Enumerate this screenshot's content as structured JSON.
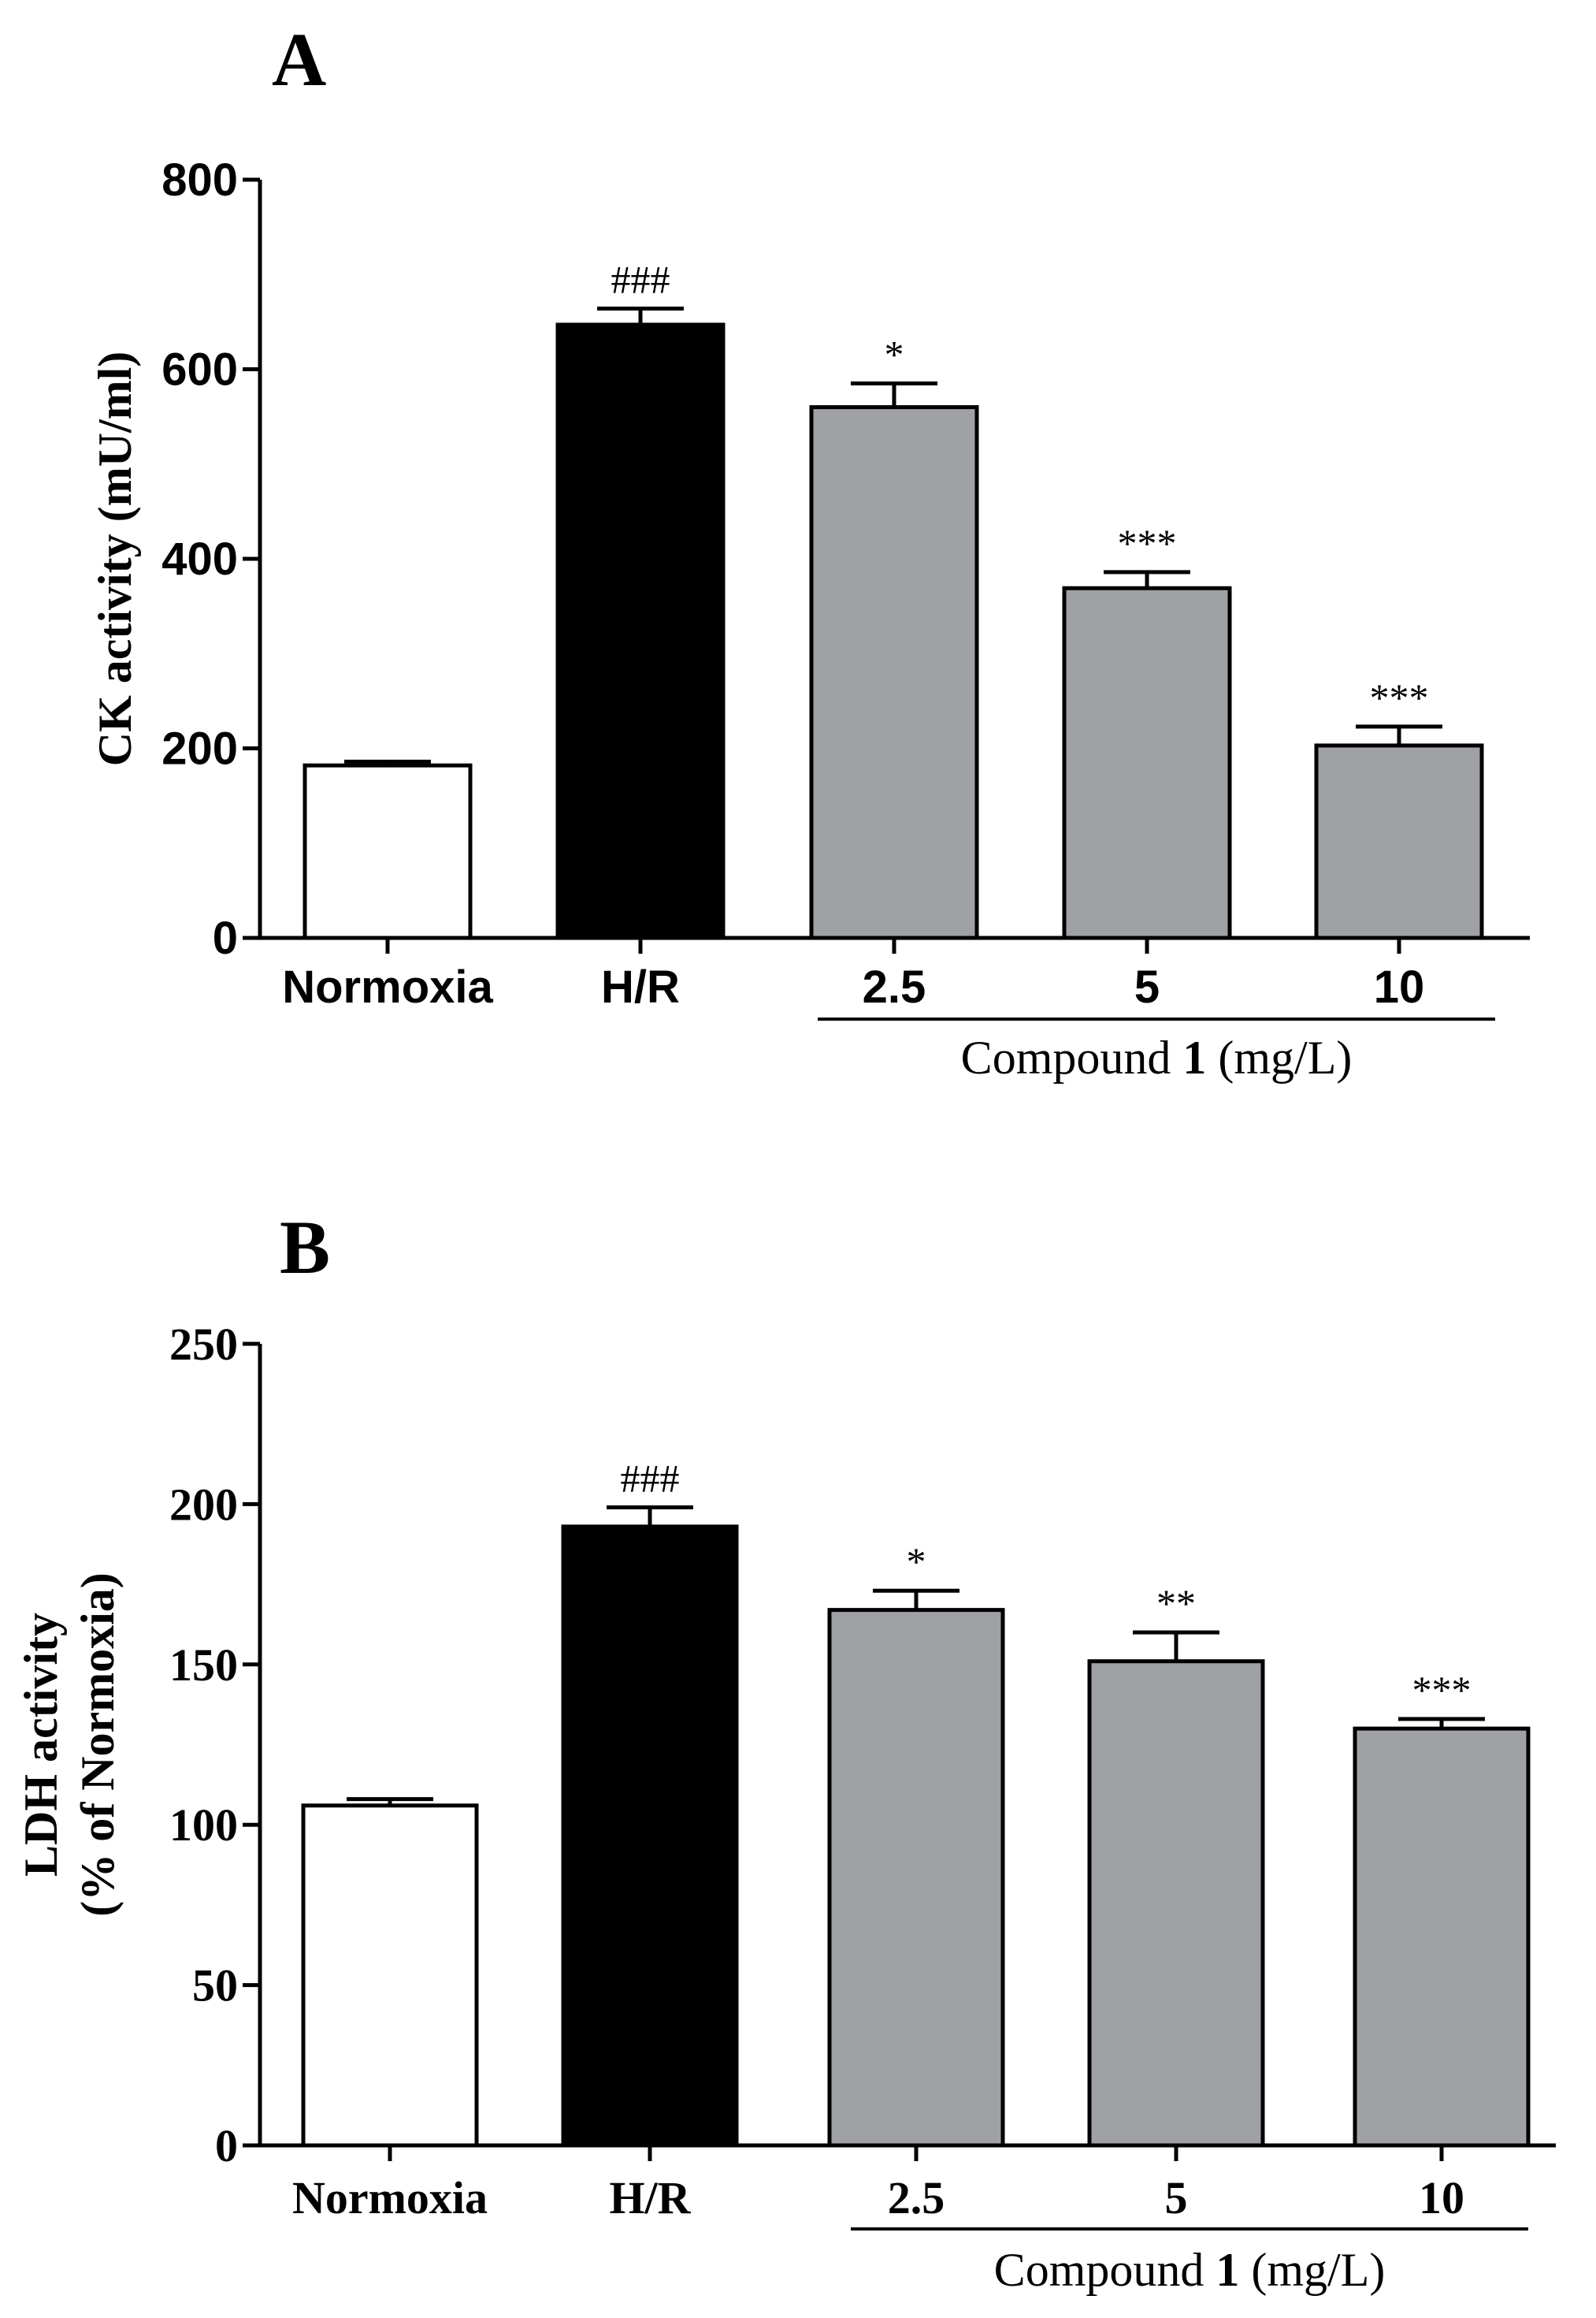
{
  "chart_data": [
    {
      "type": "bar",
      "panel": "A",
      "title": "",
      "ylabel": "CK activity (mU/ml)",
      "xlabel": "",
      "ylim": [
        0,
        800
      ],
      "yticks": [
        0,
        200,
        400,
        600,
        800
      ],
      "categories": [
        "Normoxia",
        "H/R",
        "2.5",
        "5",
        "10"
      ],
      "values": [
        182,
        647,
        560,
        369,
        203
      ],
      "errors": [
        4,
        17,
        25,
        17,
        20
      ],
      "significance": [
        "",
        "###",
        "*",
        "***",
        "***"
      ],
      "bar_colors": [
        "#ffffff",
        "#000000",
        "#a0a1a5",
        "#a0a1a5",
        "#a0a1a5"
      ],
      "group_label": {
        "prefix": "Compound ",
        "bold": "1",
        "suffix": " (mg/L)"
      },
      "group_span": [
        2,
        4
      ]
    },
    {
      "type": "bar",
      "panel": "B",
      "title": "",
      "ylabel": [
        "LDH activity",
        "(% of Normoxia)"
      ],
      "xlabel": "",
      "ylim": [
        0,
        250
      ],
      "yticks": [
        0,
        50,
        100,
        150,
        200,
        250
      ],
      "categories": [
        "Normoxia",
        "H/R",
        "2.5",
        "5",
        "10"
      ],
      "values": [
        106,
        193,
        167,
        151,
        130
      ],
      "errors": [
        2,
        6,
        6,
        9,
        3
      ],
      "significance": [
        "",
        "###",
        "*",
        "**",
        "***"
      ],
      "bar_colors": [
        "#ffffff",
        "#000000",
        "#a0a1a5",
        "#a0a1a5",
        "#a0a1a5"
      ],
      "group_label": {
        "prefix": "Compound ",
        "bold": "1",
        "suffix": " (mg/L)"
      },
      "group_span": [
        2,
        4
      ]
    }
  ]
}
